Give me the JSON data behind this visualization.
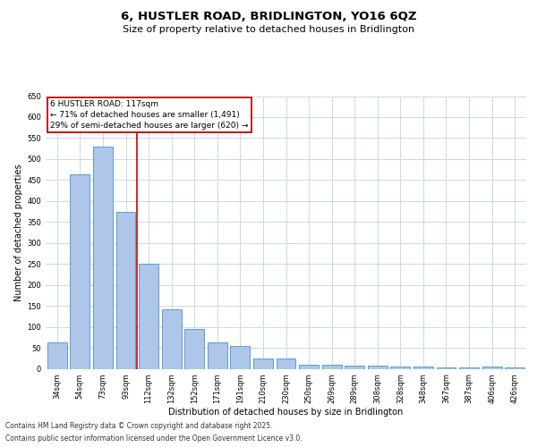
{
  "title": "6, HUSTLER ROAD, BRIDLINGTON, YO16 6QZ",
  "subtitle": "Size of property relative to detached houses in Bridlington",
  "xlabel": "Distribution of detached houses by size in Bridlington",
  "ylabel": "Number of detached properties",
  "categories": [
    "34sqm",
    "54sqm",
    "73sqm",
    "93sqm",
    "112sqm",
    "132sqm",
    "152sqm",
    "171sqm",
    "191sqm",
    "210sqm",
    "230sqm",
    "250sqm",
    "269sqm",
    "289sqm",
    "308sqm",
    "328sqm",
    "348sqm",
    "367sqm",
    "387sqm",
    "406sqm",
    "426sqm"
  ],
  "values": [
    62,
    463,
    530,
    375,
    250,
    142,
    95,
    62,
    55,
    25,
    25,
    10,
    10,
    7,
    7,
    6,
    6,
    4,
    4,
    5,
    3
  ],
  "bar_color": "#aec6e8",
  "bar_edge_color": "#5b9bd5",
  "vline_color": "#cc0000",
  "annotation_text": "6 HUSTLER ROAD: 117sqm\n← 71% of detached houses are smaller (1,491)\n29% of semi-detached houses are larger (620) →",
  "annotation_box_color": "#ffffff",
  "annotation_box_edge": "#cc0000",
  "ylim": [
    0,
    650
  ],
  "yticks": [
    0,
    50,
    100,
    150,
    200,
    250,
    300,
    350,
    400,
    450,
    500,
    550,
    600,
    650
  ],
  "background_color": "#ffffff",
  "grid_color": "#c8d8e8",
  "footer_line1": "Contains HM Land Registry data © Crown copyright and database right 2025.",
  "footer_line2": "Contains public sector information licensed under the Open Government Licence v3.0.",
  "title_fontsize": 9.5,
  "subtitle_fontsize": 8,
  "axis_label_fontsize": 7,
  "tick_fontsize": 6,
  "annotation_fontsize": 6.5,
  "footer_fontsize": 5.5,
  "vline_bar_index": 4
}
